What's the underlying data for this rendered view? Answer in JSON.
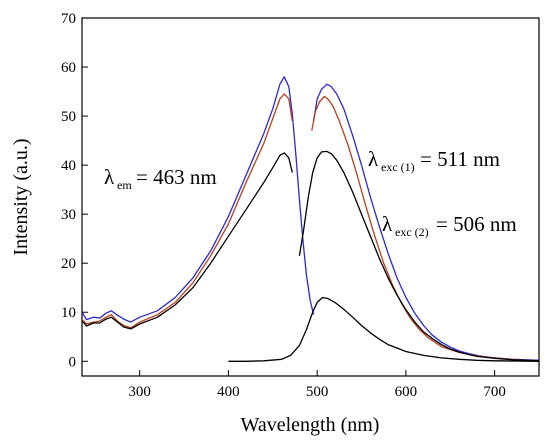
{
  "chart_data": {
    "type": "line",
    "xlabel": "Wavelength (nm)",
    "ylabel": "Intensity (a.u.)",
    "xlim": [
      235,
      750
    ],
    "ylim": [
      -3,
      70
    ],
    "xticks": [
      300,
      400,
      500,
      600,
      700
    ],
    "yticks": [
      0,
      10,
      20,
      30,
      40,
      50,
      60,
      70
    ],
    "grid": false,
    "legend": "none",
    "annotations": [
      {
        "symbol": "λ",
        "sub": "em",
        "text": "= 463 nm"
      },
      {
        "symbol": "λ",
        "sub": "exc (1)",
        "text": "= 511 nm"
      },
      {
        "symbol": "λ",
        "sub": "exc (2)",
        "text": "= 506 nm"
      }
    ],
    "series": [
      {
        "color": "#2a2acf",
        "x": [
          235,
          240,
          248,
          255,
          262,
          268,
          275,
          282,
          290,
          300,
          320,
          340,
          360,
          380,
          400,
          420,
          440,
          450,
          458,
          463,
          468,
          472,
          476,
          480,
          484,
          488,
          492,
          496
        ],
        "y": [
          10.0,
          8.5,
          9.0,
          8.8,
          9.8,
          10.3,
          9.4,
          8.6,
          8.0,
          9.0,
          10.3,
          13.0,
          17.0,
          22.5,
          29.5,
          38.0,
          46.5,
          51.5,
          56.5,
          58.0,
          56.0,
          50.5,
          42.0,
          33.0,
          24.5,
          17.5,
          12.5,
          9.5
        ]
      },
      {
        "color": "#2a2acf",
        "x": [
          496,
          500,
          505,
          511,
          516,
          522,
          530,
          540,
          550,
          560,
          570,
          580,
          590,
          600,
          610,
          620,
          630,
          640,
          650,
          660,
          670,
          680,
          690,
          700,
          720,
          750
        ],
        "y": [
          49.0,
          53.5,
          55.5,
          56.5,
          56.0,
          54.5,
          51.5,
          46.0,
          40.0,
          33.5,
          27.5,
          22.0,
          17.0,
          13.0,
          9.8,
          7.3,
          5.3,
          3.9,
          2.9,
          2.1,
          1.6,
          1.2,
          0.9,
          0.7,
          0.4,
          0.2
        ]
      },
      {
        "color": "#b8401e",
        "x": [
          235,
          240,
          248,
          255,
          262,
          268,
          275,
          282,
          290,
          300,
          320,
          340,
          360,
          380,
          400,
          420,
          440,
          450,
          458,
          463,
          468,
          472
        ],
        "y": [
          8.5,
          7.6,
          8.0,
          8.2,
          9.0,
          9.5,
          8.2,
          7.3,
          6.8,
          8.0,
          9.5,
          12.0,
          16.0,
          21.5,
          28.0,
          36.5,
          44.5,
          49.5,
          53.5,
          54.5,
          53.5,
          49.0
        ]
      },
      {
        "color": "#b8401e",
        "x": [
          494,
          498,
          503,
          508,
          512,
          518,
          525,
          535,
          545,
          555,
          565,
          575,
          585,
          595,
          605,
          615,
          625,
          640,
          660,
          680,
          700,
          725,
          750
        ],
        "y": [
          47.0,
          51.0,
          53.0,
          54.0,
          53.5,
          52.0,
          49.0,
          44.0,
          38.0,
          31.5,
          25.5,
          20.0,
          15.5,
          11.8,
          8.8,
          6.5,
          4.8,
          3.0,
          1.8,
          1.1,
          0.7,
          0.3,
          0.1
        ]
      },
      {
        "color": "#000000",
        "x": [
          235,
          240,
          248,
          255,
          262,
          268,
          275,
          282,
          290,
          300,
          320,
          340,
          360,
          380,
          400,
          420,
          440,
          450,
          458,
          463,
          468,
          472
        ],
        "y": [
          8.3,
          7.2,
          7.8,
          7.8,
          8.6,
          9.0,
          8.0,
          7.0,
          6.6,
          7.6,
          9.0,
          11.5,
          15.0,
          20.0,
          25.5,
          31.0,
          36.5,
          39.5,
          42.0,
          42.5,
          41.5,
          38.5
        ]
      },
      {
        "color": "#000000",
        "x": [
          480,
          485,
          490,
          495,
          500,
          505,
          511,
          516,
          522,
          530,
          540,
          550,
          560,
          570,
          580,
          590,
          600,
          610,
          620,
          630,
          640,
          650,
          660,
          670,
          680,
          690,
          700,
          720,
          750
        ],
        "y": [
          21.5,
          27.0,
          33.5,
          38.5,
          41.5,
          42.7,
          42.8,
          42.3,
          41.0,
          38.5,
          34.5,
          30.0,
          25.5,
          21.0,
          17.0,
          13.5,
          10.5,
          8.0,
          6.0,
          4.6,
          3.4,
          2.5,
          1.9,
          1.4,
          1.0,
          0.8,
          0.6,
          0.3,
          0.1
        ]
      },
      {
        "color": "#000000",
        "x": [
          400,
          420,
          440,
          460,
          470,
          480,
          488,
          495,
          500,
          506,
          512,
          520,
          530,
          540,
          550,
          560,
          570,
          580,
          600,
          620,
          640,
          660,
          680,
          700,
          720,
          750
        ],
        "y": [
          0.0,
          0.0,
          0.1,
          0.4,
          1.2,
          3.2,
          6.5,
          10.0,
          12.0,
          13.0,
          12.8,
          12.0,
          10.6,
          9.0,
          7.3,
          5.8,
          4.5,
          3.4,
          2.0,
          1.2,
          0.7,
          0.4,
          0.2,
          0.1,
          0.05,
          0.0
        ]
      }
    ]
  }
}
